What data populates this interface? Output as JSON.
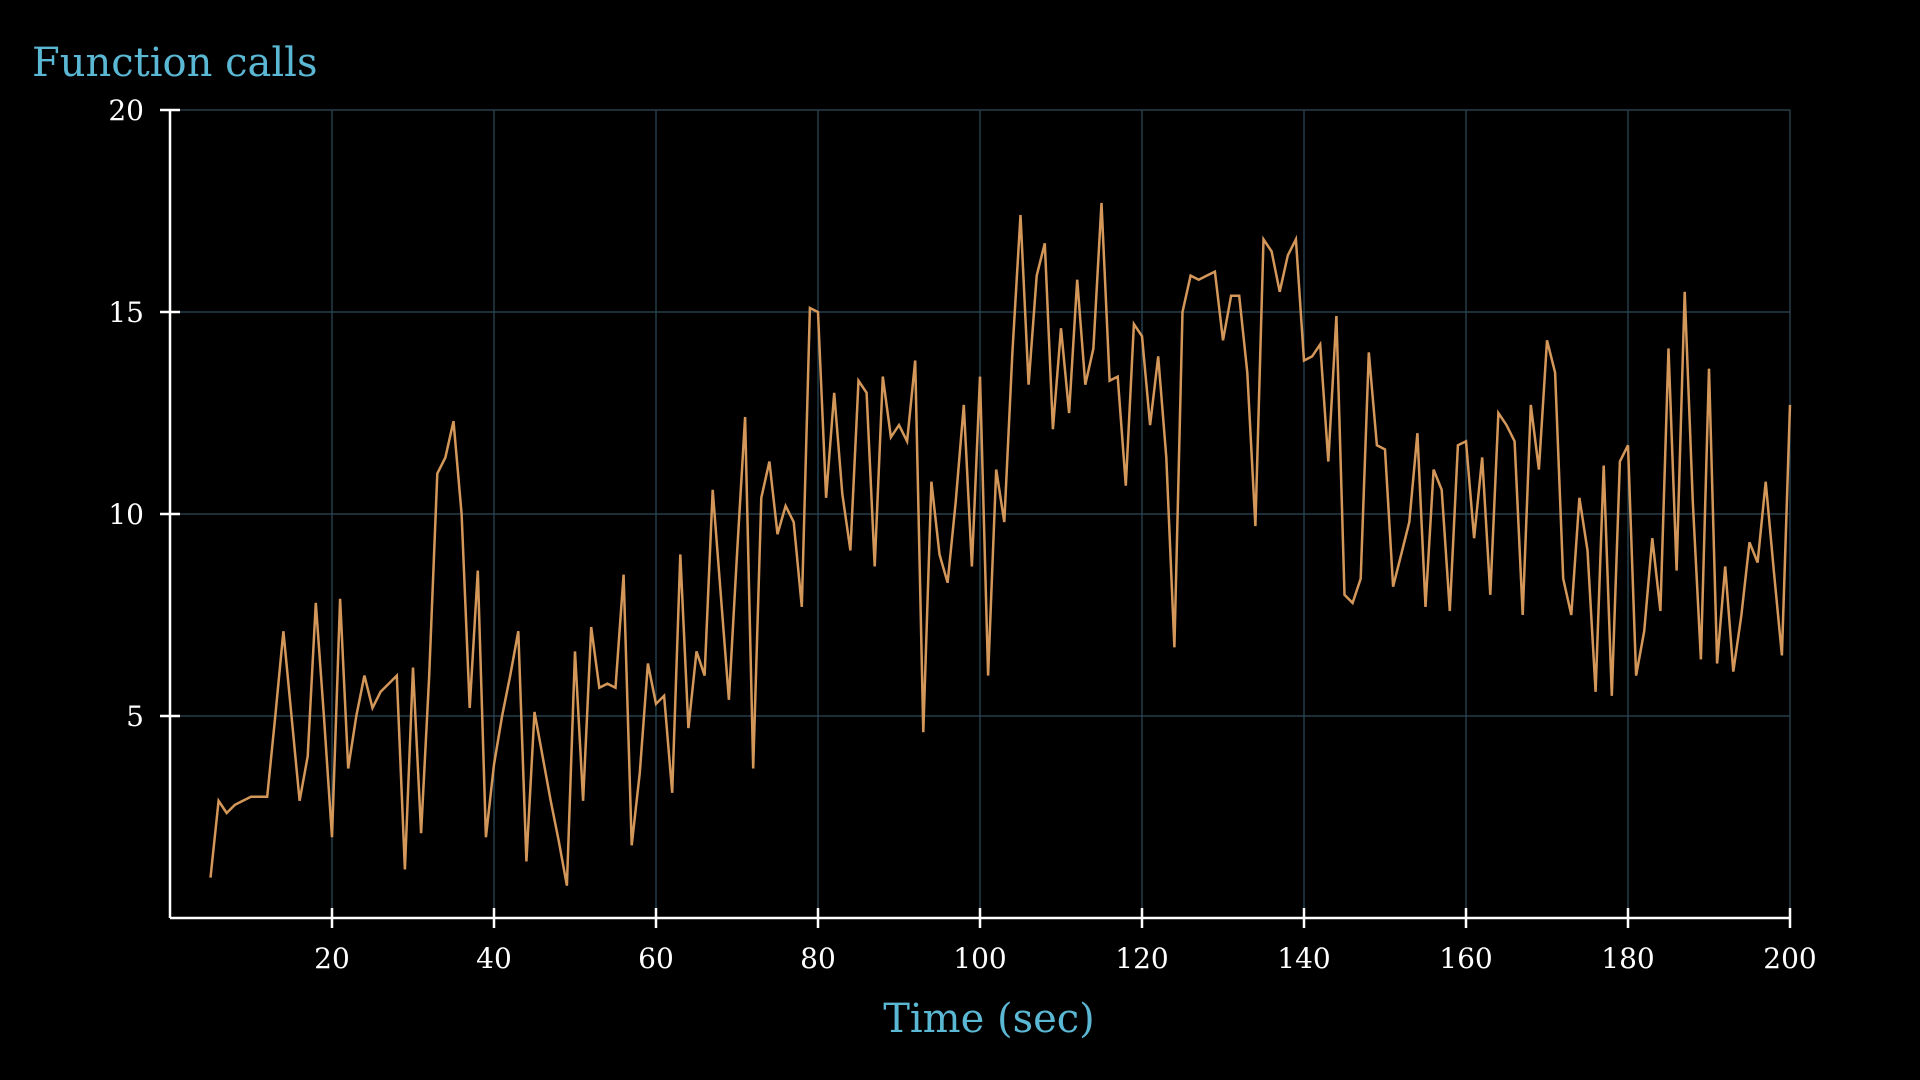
{
  "chart_data": {
    "type": "line",
    "xlabel": "Time (sec)",
    "ylabel": "Function calls",
    "xlim": [
      0,
      200
    ],
    "ylim": [
      0,
      20
    ],
    "xticks": [
      20,
      40,
      60,
      80,
      100,
      120,
      140,
      160,
      180,
      200
    ],
    "yticks": [
      5,
      10,
      15,
      20
    ],
    "grid": true,
    "colors": {
      "background": "#000000",
      "axis": "#ffffff",
      "grid": "#2c4a5a",
      "line": "#d4975a",
      "label": "#5bb8d4",
      "tick_label": "#ffffff"
    },
    "series": [
      {
        "x": [
          5,
          6,
          7,
          8,
          9,
          10,
          11,
          12,
          13,
          14,
          15,
          16,
          17,
          18,
          19,
          20,
          21,
          22,
          23,
          24,
          25,
          26,
          27,
          28,
          29,
          30,
          31,
          32,
          33,
          34,
          35,
          36,
          37,
          38,
          39,
          40,
          41,
          42,
          43,
          44,
          45,
          46,
          47,
          48,
          49,
          50,
          51,
          52,
          53,
          54,
          55,
          56,
          57,
          58,
          59,
          60,
          61,
          62,
          63,
          64,
          65,
          66,
          67,
          68,
          69,
          70,
          71,
          72,
          73,
          74,
          75,
          76,
          77,
          78,
          79,
          80,
          81,
          82,
          83,
          84,
          85,
          86,
          87,
          88,
          89,
          90,
          91,
          92,
          93,
          94,
          95,
          96,
          97,
          98,
          99,
          100,
          101,
          102,
          103,
          104,
          105,
          106,
          107,
          108,
          109,
          110,
          111,
          112,
          113,
          114,
          115,
          116,
          117,
          118,
          119,
          120,
          121,
          122,
          123,
          124,
          125,
          126,
          127,
          128,
          129,
          130,
          131,
          132,
          133,
          134,
          135,
          136,
          137,
          138,
          139,
          140,
          141,
          142,
          143,
          144,
          145,
          146,
          147,
          148,
          149,
          150,
          151,
          152,
          153,
          154,
          155,
          156,
          157,
          158,
          159,
          160,
          161,
          162,
          163,
          164,
          165,
          166,
          167,
          168,
          169,
          170,
          171,
          172,
          173,
          174,
          175,
          176,
          177,
          178,
          179,
          180,
          181,
          182,
          183,
          184,
          185,
          186,
          187,
          188,
          189,
          190,
          191,
          192,
          193,
          194,
          195,
          196,
          197,
          198,
          199,
          200
        ],
        "y": [
          1.0,
          2.9,
          2.6,
          2.8,
          2.9,
          3.0,
          3.0,
          3.0,
          5.0,
          7.1,
          5.0,
          2.9,
          4.0,
          7.8,
          5.0,
          2.0,
          7.9,
          3.7,
          5.0,
          6.0,
          5.2,
          5.6,
          5.8,
          6.0,
          1.2,
          6.2,
          2.1,
          6.0,
          11.0,
          11.4,
          12.3,
          10.0,
          5.2,
          8.6,
          2.0,
          3.8,
          5.0,
          6.0,
          7.1,
          1.4,
          5.1,
          4.0,
          2.9,
          1.9,
          0.8,
          6.6,
          2.9,
          7.2,
          5.7,
          5.8,
          5.7,
          8.5,
          1.8,
          3.6,
          6.3,
          5.3,
          5.5,
          3.1,
          9.0,
          4.7,
          6.6,
          6.0,
          10.6,
          8.0,
          5.4,
          9.0,
          12.4,
          3.7,
          10.4,
          11.3,
          9.5,
          10.2,
          9.8,
          7.7,
          15.1,
          15.0,
          10.4,
          13.0,
          10.5,
          9.1,
          13.3,
          13.0,
          8.7,
          13.4,
          11.9,
          12.2,
          11.8,
          13.8,
          4.6,
          10.8,
          9.0,
          8.3,
          10.3,
          12.7,
          8.7,
          13.4,
          6.0,
          11.1,
          9.8,
          14.0,
          17.4,
          13.2,
          15.9,
          16.7,
          12.1,
          14.6,
          12.5,
          15.8,
          13.2,
          14.1,
          17.7,
          13.3,
          13.4,
          10.7,
          14.7,
          14.4,
          12.2,
          13.9,
          11.4,
          6.7,
          15.0,
          15.9,
          15.8,
          15.9,
          16.0,
          14.3,
          15.4,
          15.4,
          13.5,
          9.7,
          16.8,
          16.5,
          15.5,
          16.4,
          16.8,
          13.8,
          13.9,
          14.2,
          11.3,
          14.9,
          8.0,
          7.8,
          8.4,
          14.0,
          11.7,
          11.6,
          8.2,
          9.0,
          9.8,
          12.0,
          7.7,
          11.1,
          10.6,
          7.6,
          11.7,
          11.8,
          9.4,
          11.4,
          8.0,
          12.5,
          12.2,
          11.8,
          7.5,
          12.7,
          11.1,
          14.3,
          13.5,
          8.4,
          7.5,
          10.4,
          9.1,
          5.6,
          11.2,
          5.5,
          11.3,
          11.7,
          6.0,
          7.1,
          9.4,
          7.6,
          14.1,
          8.6,
          15.5,
          10.3,
          6.4,
          13.6,
          6.3,
          8.7,
          6.1,
          7.5,
          9.3,
          8.8,
          10.8,
          8.6,
          6.5,
          12.7
        ]
      }
    ]
  }
}
